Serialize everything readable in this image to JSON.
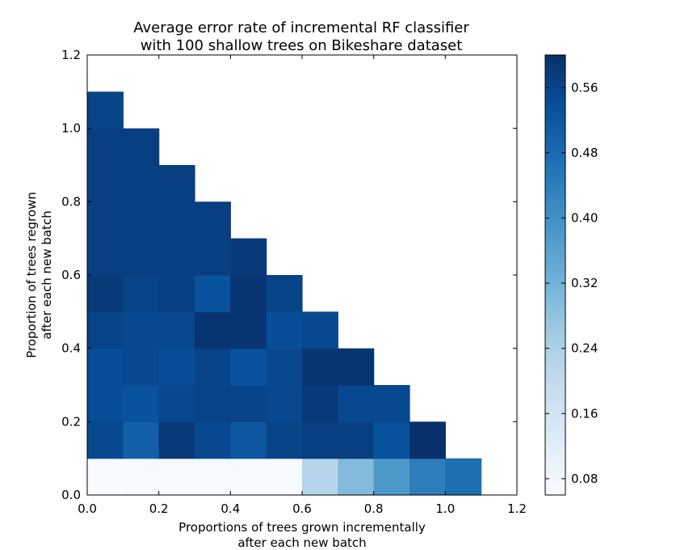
{
  "chart_data": {
    "type": "heatmap",
    "title_lines": [
      "Average error rate of incremental RF classifier",
      "with 100 shallow trees on Bikeshare dataset"
    ],
    "xlabel_lines": [
      "Proportions of trees grown incrementally",
      "after each new batch"
    ],
    "ylabel_lines": [
      "Proportion of trees regrown",
      "after each new batch"
    ],
    "xlim": [
      0,
      1.2
    ],
    "ylim": [
      0,
      1.2
    ],
    "x_ticks": [
      "0.0",
      "0.2",
      "0.4",
      "0.6",
      "0.8",
      "1.0",
      "1.2"
    ],
    "y_ticks": [
      "0.0",
      "0.2",
      "0.4",
      "0.6",
      "0.8",
      "1.0",
      "1.2"
    ],
    "cell_size": 0.1,
    "colorscale": "Blues",
    "color_range": [
      0.06,
      0.6
    ],
    "colorbar_ticks": [
      "0.08",
      "0.16",
      "0.24",
      "0.32",
      "0.40",
      "0.48",
      "0.56"
    ],
    "grid": false,
    "rows": [
      {
        "y": 0.0,
        "values": [
          0.06,
          0.065,
          0.065,
          0.065,
          0.065,
          0.06,
          0.22,
          0.3,
          0.38,
          0.44,
          0.47
        ]
      },
      {
        "y": 0.1,
        "values": [
          0.55,
          0.5,
          0.58,
          0.55,
          0.52,
          0.56,
          0.57,
          0.57,
          0.53,
          0.6
        ]
      },
      {
        "y": 0.2,
        "values": [
          0.54,
          0.53,
          0.55,
          0.56,
          0.56,
          0.55,
          0.58,
          0.55,
          0.55
        ]
      },
      {
        "y": 0.3,
        "values": [
          0.54,
          0.55,
          0.54,
          0.56,
          0.53,
          0.55,
          0.59,
          0.59
        ]
      },
      {
        "y": 0.4,
        "values": [
          0.56,
          0.55,
          0.55,
          0.59,
          0.59,
          0.54,
          0.55
        ]
      },
      {
        "y": 0.5,
        "values": [
          0.58,
          0.56,
          0.57,
          0.53,
          0.59,
          0.56
        ]
      },
      {
        "y": 0.6,
        "values": [
          0.57,
          0.57,
          0.57,
          0.57,
          0.58
        ]
      },
      {
        "y": 0.7,
        "values": [
          0.57,
          0.57,
          0.57,
          0.57
        ]
      },
      {
        "y": 0.8,
        "values": [
          0.57,
          0.57,
          0.57
        ]
      },
      {
        "y": 0.9,
        "values": [
          0.57,
          0.57
        ]
      },
      {
        "y": 1.0,
        "values": [
          0.56
        ]
      }
    ]
  }
}
